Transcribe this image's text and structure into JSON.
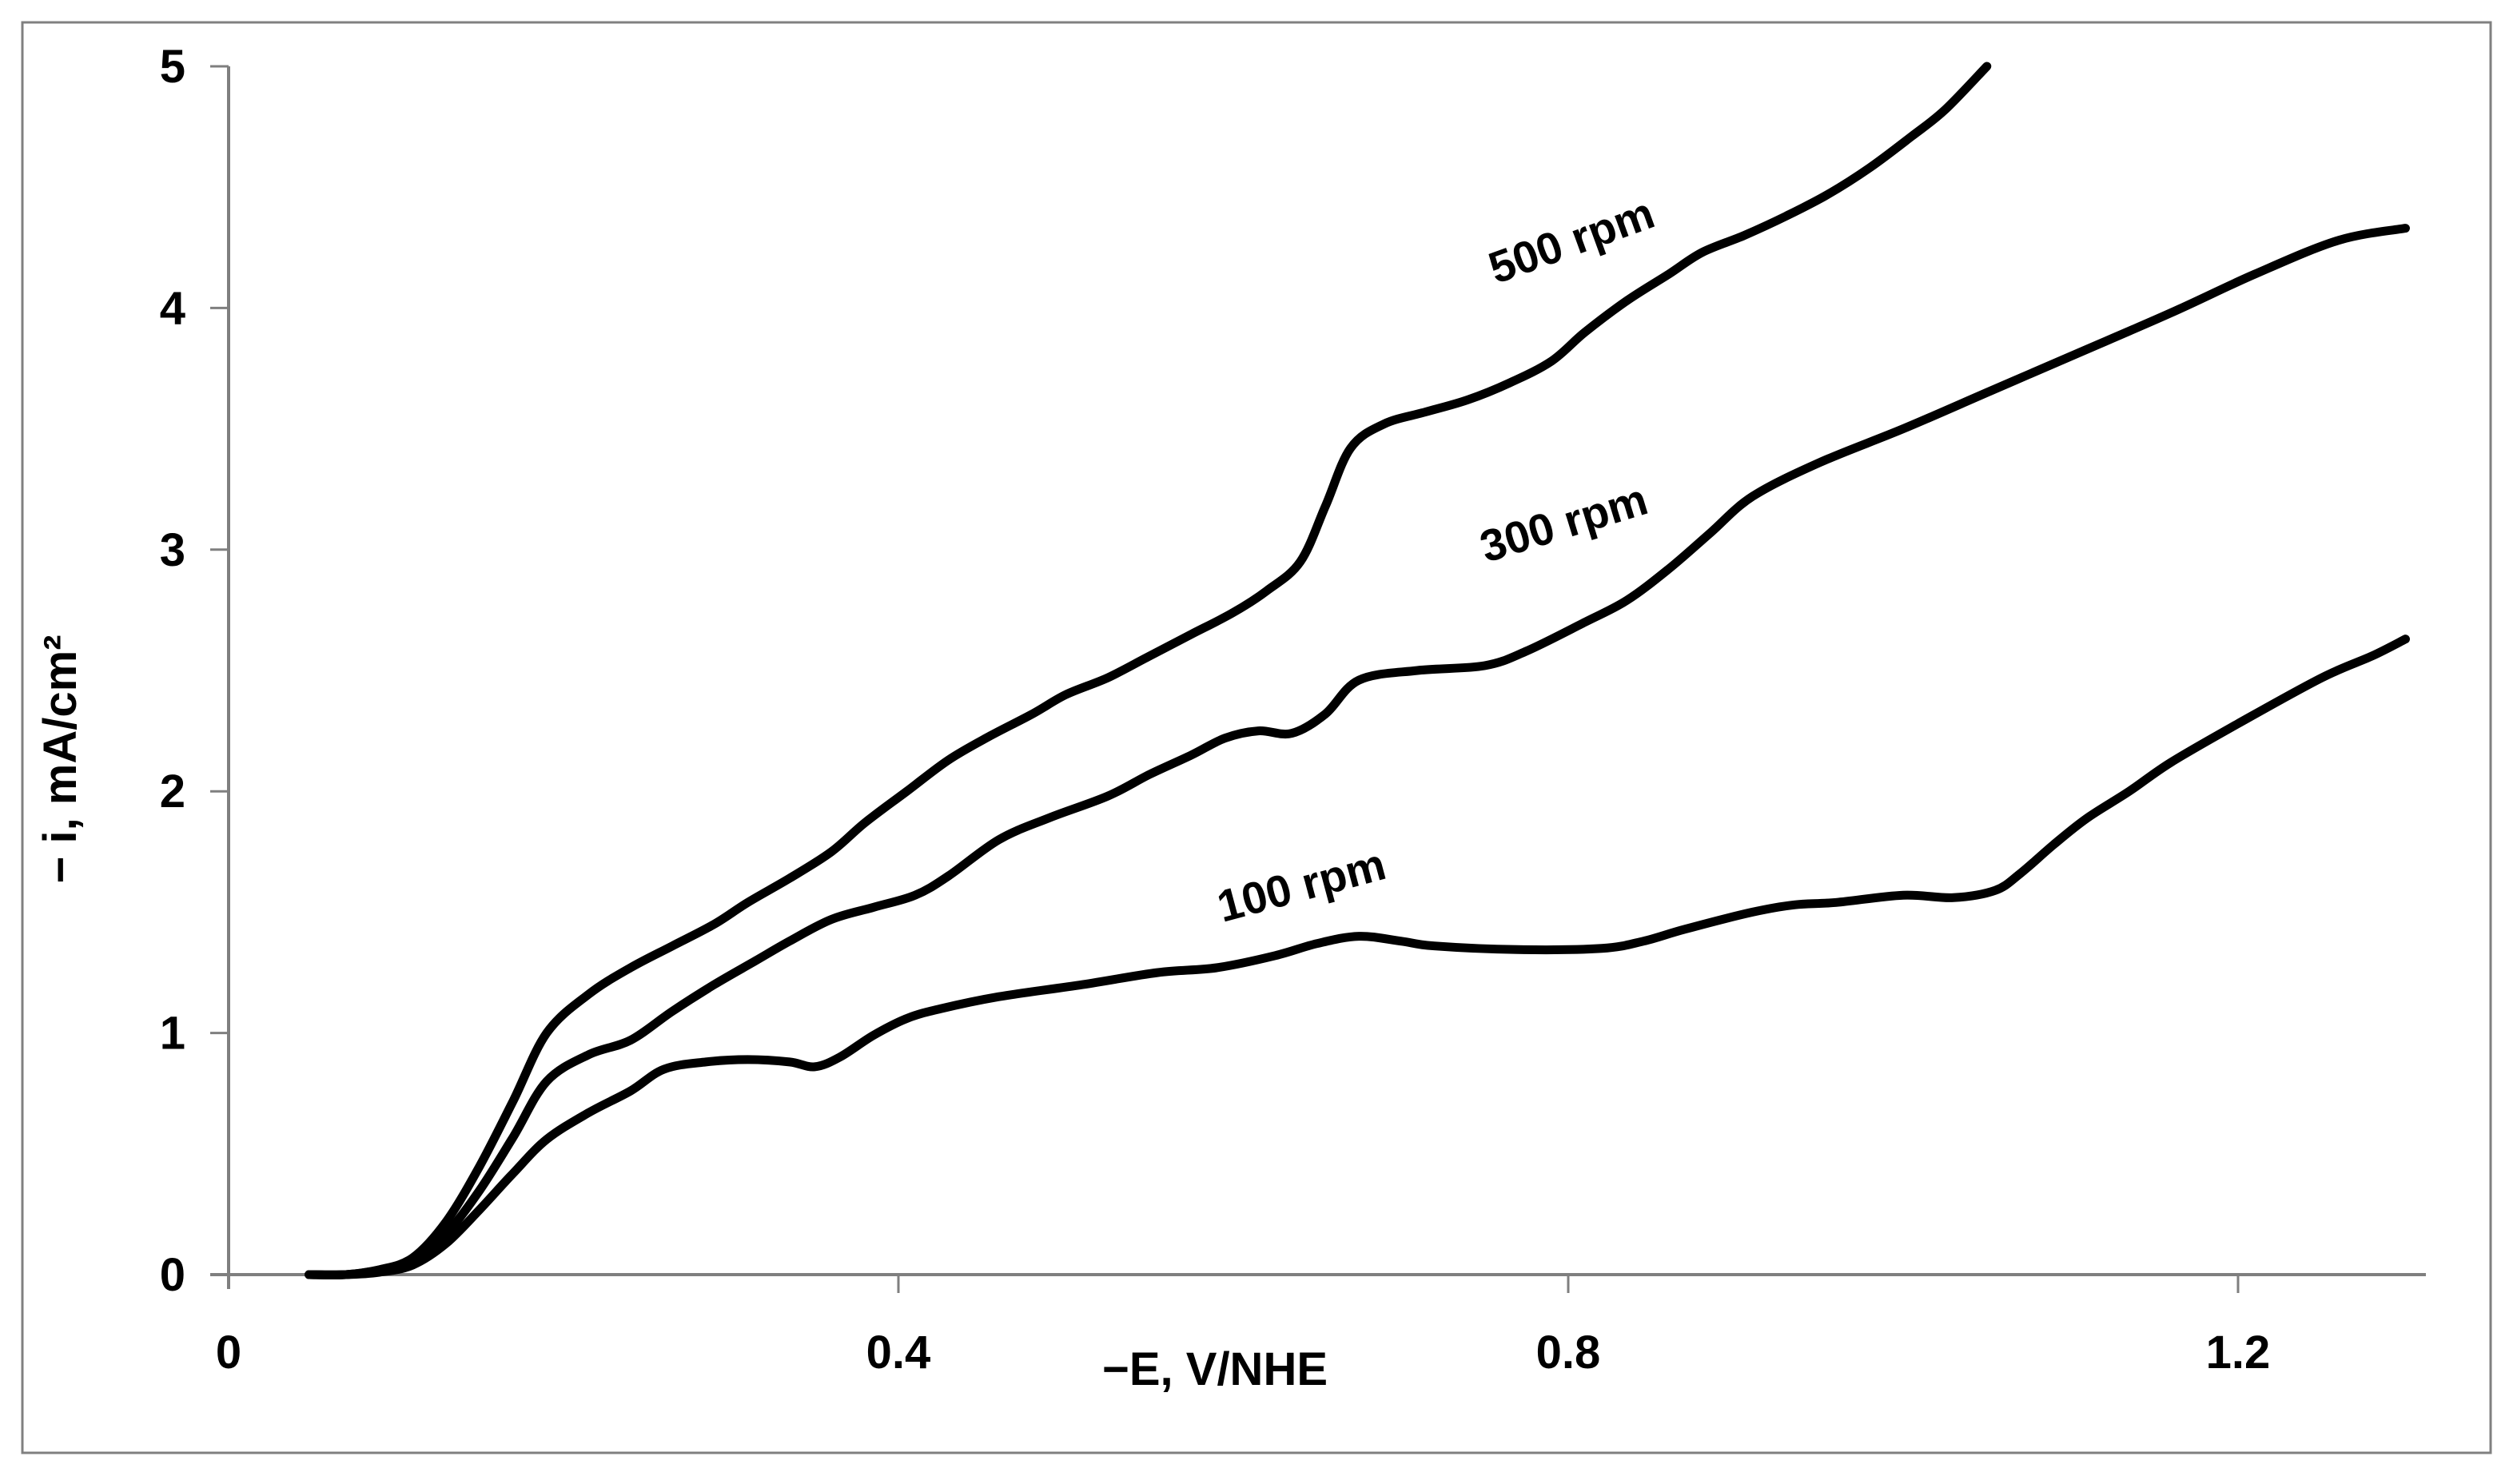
{
  "figure": {
    "background": "#ffffff",
    "border_color": "#808080",
    "axis_color": "#7f7f7f",
    "curve_color": "#000000",
    "text_color": "#000000"
  },
  "chart_data": {
    "type": "line",
    "title": "",
    "xlabel": "−E, V/NHE",
    "ylabel": "− i, mA/cm²",
    "xlim": [
      0,
      1.32
    ],
    "ylim": [
      0,
      5
    ],
    "grid": "off",
    "legend_position": "inline-annotations",
    "x_ticks": {
      "values": [
        0,
        0.4,
        0.8,
        1.2
      ],
      "labels": [
        "0",
        "0.4",
        "0.8",
        "1.2"
      ]
    },
    "y_ticks": {
      "values": [
        0,
        1,
        2,
        3,
        4,
        5
      ],
      "labels": [
        "0",
        "1",
        "2",
        "3",
        "4",
        "5"
      ]
    },
    "series": [
      {
        "name": "500 rpm",
        "annotation": {
          "text": "500 rpm",
          "v": 0.805,
          "i": 4.22,
          "angle": -20
        },
        "points": [
          [
            0.048,
            0.0
          ],
          [
            0.07,
            0.0
          ],
          [
            0.09,
            0.02
          ],
          [
            0.11,
            0.07
          ],
          [
            0.13,
            0.22
          ],
          [
            0.15,
            0.45
          ],
          [
            0.17,
            0.72
          ],
          [
            0.19,
            1.0
          ],
          [
            0.215,
            1.16
          ],
          [
            0.24,
            1.27
          ],
          [
            0.265,
            1.36
          ],
          [
            0.29,
            1.45
          ],
          [
            0.31,
            1.54
          ],
          [
            0.335,
            1.64
          ],
          [
            0.36,
            1.75
          ],
          [
            0.38,
            1.87
          ],
          [
            0.405,
            2.0
          ],
          [
            0.43,
            2.13
          ],
          [
            0.455,
            2.23
          ],
          [
            0.48,
            2.32
          ],
          [
            0.5,
            2.4
          ],
          [
            0.525,
            2.47
          ],
          [
            0.55,
            2.56
          ],
          [
            0.575,
            2.65
          ],
          [
            0.6,
            2.74
          ],
          [
            0.62,
            2.83
          ],
          [
            0.64,
            2.95
          ],
          [
            0.655,
            3.18
          ],
          [
            0.67,
            3.42
          ],
          [
            0.69,
            3.52
          ],
          [
            0.715,
            3.57
          ],
          [
            0.74,
            3.62
          ],
          [
            0.765,
            3.69
          ],
          [
            0.79,
            3.78
          ],
          [
            0.81,
            3.9
          ],
          [
            0.835,
            4.03
          ],
          [
            0.86,
            4.14
          ],
          [
            0.88,
            4.23
          ],
          [
            0.905,
            4.3
          ],
          [
            0.93,
            4.38
          ],
          [
            0.955,
            4.47
          ],
          [
            0.98,
            4.58
          ],
          [
            1.005,
            4.71
          ],
          [
            1.025,
            4.82
          ],
          [
            1.05,
            5.0
          ]
        ]
      },
      {
        "name": "300 rpm",
        "annotation": {
          "text": "300 rpm",
          "v": 0.8,
          "i": 3.05,
          "angle": -17
        },
        "points": [
          [
            0.048,
            0.0
          ],
          [
            0.07,
            0.0
          ],
          [
            0.09,
            0.02
          ],
          [
            0.11,
            0.06
          ],
          [
            0.13,
            0.17
          ],
          [
            0.15,
            0.35
          ],
          [
            0.17,
            0.57
          ],
          [
            0.19,
            0.8
          ],
          [
            0.215,
            0.91
          ],
          [
            0.24,
            0.97
          ],
          [
            0.265,
            1.09
          ],
          [
            0.29,
            1.2
          ],
          [
            0.315,
            1.3
          ],
          [
            0.335,
            1.38
          ],
          [
            0.36,
            1.47
          ],
          [
            0.385,
            1.52
          ],
          [
            0.41,
            1.57
          ],
          [
            0.43,
            1.65
          ],
          [
            0.46,
            1.8
          ],
          [
            0.49,
            1.89
          ],
          [
            0.525,
            1.98
          ],
          [
            0.55,
            2.07
          ],
          [
            0.575,
            2.15
          ],
          [
            0.595,
            2.22
          ],
          [
            0.615,
            2.25
          ],
          [
            0.635,
            2.24
          ],
          [
            0.655,
            2.32
          ],
          [
            0.675,
            2.46
          ],
          [
            0.71,
            2.5
          ],
          [
            0.75,
            2.52
          ],
          [
            0.775,
            2.58
          ],
          [
            0.81,
            2.7
          ],
          [
            0.835,
            2.79
          ],
          [
            0.86,
            2.92
          ],
          [
            0.885,
            3.07
          ],
          [
            0.91,
            3.22
          ],
          [
            0.95,
            3.36
          ],
          [
            1.0,
            3.5
          ],
          [
            1.05,
            3.65
          ],
          [
            1.1,
            3.8
          ],
          [
            1.16,
            3.98
          ],
          [
            1.21,
            4.14
          ],
          [
            1.26,
            4.28
          ],
          [
            1.3,
            4.33
          ]
        ]
      },
      {
        "name": "100 rpm",
        "annotation": {
          "text": "100 rpm",
          "v": 0.643,
          "i": 1.55,
          "angle": -15
        },
        "points": [
          [
            0.048,
            0.0
          ],
          [
            0.07,
            0.0
          ],
          [
            0.09,
            0.01
          ],
          [
            0.11,
            0.04
          ],
          [
            0.13,
            0.13
          ],
          [
            0.15,
            0.27
          ],
          [
            0.17,
            0.42
          ],
          [
            0.19,
            0.56
          ],
          [
            0.215,
            0.67
          ],
          [
            0.24,
            0.76
          ],
          [
            0.26,
            0.85
          ],
          [
            0.285,
            0.88
          ],
          [
            0.31,
            0.89
          ],
          [
            0.335,
            0.88
          ],
          [
            0.35,
            0.86
          ],
          [
            0.365,
            0.9
          ],
          [
            0.385,
            0.99
          ],
          [
            0.405,
            1.06
          ],
          [
            0.425,
            1.1
          ],
          [
            0.46,
            1.15
          ],
          [
            0.51,
            1.2
          ],
          [
            0.555,
            1.25
          ],
          [
            0.59,
            1.27
          ],
          [
            0.625,
            1.32
          ],
          [
            0.65,
            1.37
          ],
          [
            0.675,
            1.4
          ],
          [
            0.7,
            1.38
          ],
          [
            0.72,
            1.36
          ],
          [
            0.77,
            1.345
          ],
          [
            0.82,
            1.35
          ],
          [
            0.845,
            1.38
          ],
          [
            0.87,
            1.43
          ],
          [
            0.91,
            1.5
          ],
          [
            0.935,
            1.53
          ],
          [
            0.96,
            1.54
          ],
          [
            1.0,
            1.57
          ],
          [
            1.03,
            1.56
          ],
          [
            1.055,
            1.59
          ],
          [
            1.07,
            1.66
          ],
          [
            1.09,
            1.78
          ],
          [
            1.11,
            1.89
          ],
          [
            1.135,
            2.0
          ],
          [
            1.16,
            2.12
          ],
          [
            1.2,
            2.28
          ],
          [
            1.25,
            2.47
          ],
          [
            1.28,
            2.56
          ],
          [
            1.3,
            2.63
          ]
        ]
      }
    ]
  }
}
